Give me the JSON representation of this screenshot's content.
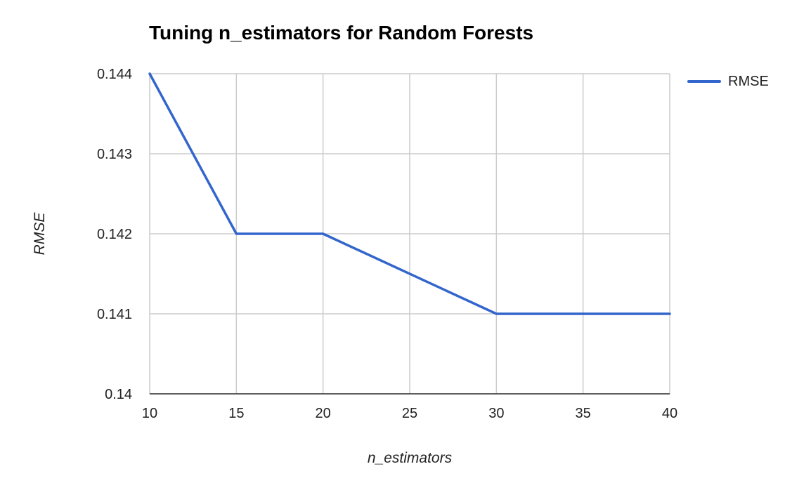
{
  "chart_data": {
    "type": "line",
    "title": "Tuning n_estimators for Random Forests",
    "xlabel": "n_estimators",
    "ylabel": "RMSE",
    "x": [
      10,
      15,
      20,
      30,
      40
    ],
    "series": [
      {
        "name": "RMSE",
        "values": [
          0.144,
          0.142,
          0.142,
          0.141,
          0.141
        ],
        "color": "#3366cc"
      }
    ],
    "xticks": [
      "10",
      "15",
      "20",
      "25",
      "30",
      "35",
      "40"
    ],
    "yticks": [
      "0.14",
      "0.141",
      "0.142",
      "0.143",
      "0.144"
    ],
    "xlim": [
      10,
      40
    ],
    "ylim": [
      0.14,
      0.144
    ],
    "grid": true,
    "legend_position": "right"
  }
}
